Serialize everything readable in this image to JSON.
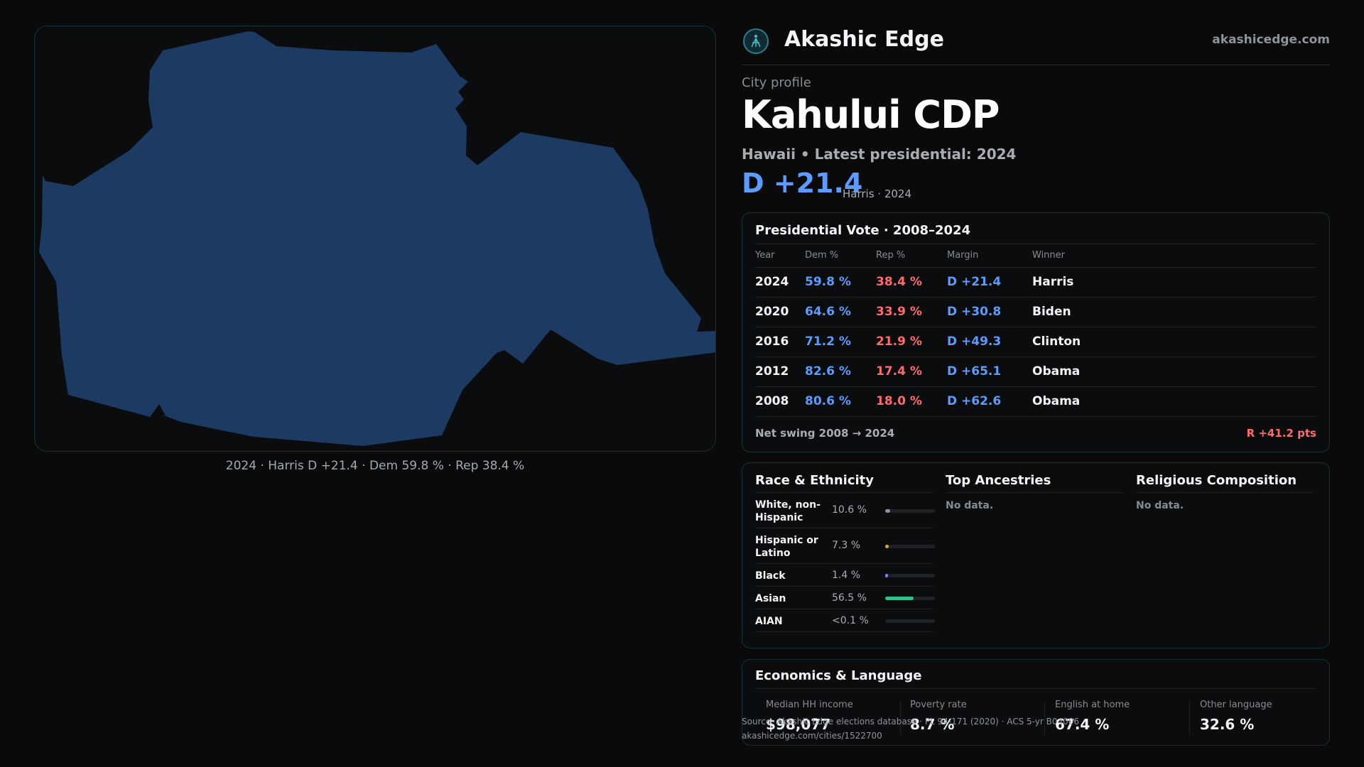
{
  "map": {
    "caption": "2024 · Harris D +21.4 · Dem 59.8 % · Rep 38.4 %",
    "fill_color": "#1d3a63"
  },
  "brand": {
    "name": "Akashic Edge",
    "url": "akashicedge.com",
    "icon": "akashic-edge-logo-icon"
  },
  "profile": {
    "eyebrow": "City profile",
    "title": "Kahului CDP",
    "subtitle": "Hawaii • Latest presidential: 2024",
    "margin": "D +21.4",
    "margin_note": "Harris · 2024"
  },
  "vote": {
    "title": "Presidential Vote · 2008–2024",
    "headers": [
      "Year",
      "Dem %",
      "Rep %",
      "Margin",
      "Winner"
    ],
    "rows": [
      {
        "year": "2024",
        "dem": "59.8 %",
        "rep": "38.4 %",
        "margin": "D +21.4",
        "winner": "Harris"
      },
      {
        "year": "2020",
        "dem": "64.6 %",
        "rep": "33.9 %",
        "margin": "D +30.8",
        "winner": "Biden"
      },
      {
        "year": "2016",
        "dem": "71.2 %",
        "rep": "21.9 %",
        "margin": "D +49.3",
        "winner": "Clinton"
      },
      {
        "year": "2012",
        "dem": "82.6 %",
        "rep": "17.4 %",
        "margin": "D +65.1",
        "winner": "Obama"
      },
      {
        "year": "2008",
        "dem": "80.6 %",
        "rep": "18.0 %",
        "margin": "D +62.6",
        "winner": "Obama"
      }
    ],
    "swing_label": "Net swing 2008 → 2024",
    "swing_value": "R +41.2 pts"
  },
  "demographics": {
    "race_title": "Race & Ethnicity",
    "race": [
      {
        "name": "White, non-Hispanic",
        "pct": "10.6 %",
        "share": 0.106,
        "color": "#8a94a6"
      },
      {
        "name": "Hispanic or Latino",
        "pct": "7.3 %",
        "share": 0.073,
        "color": "#e0a030"
      },
      {
        "name": "Black",
        "pct": "1.4 %",
        "share": 0.014,
        "color": "#8a7cff"
      },
      {
        "name": "Asian",
        "pct": "56.5 %",
        "share": 0.565,
        "color": "#2fbf8a"
      },
      {
        "name": "AIAN",
        "pct": "<0.1 %",
        "share": 0.0,
        "color": "#c07040"
      }
    ],
    "ancestry_title": "Top Ancestries",
    "ancestry_nodata": "No data.",
    "religion_title": "Religious Composition",
    "religion_nodata": "No data."
  },
  "economics": {
    "title": "Economics & Language",
    "stats": [
      {
        "label": "Median HH income",
        "value": "$98,077"
      },
      {
        "label": "Poverty rate",
        "value": "8.7 %"
      },
      {
        "label": "English at home",
        "value": "67.4 %"
      },
      {
        "label": "Other language",
        "value": "32.6 %"
      }
    ]
  },
  "footer": {
    "source": "Source: Akashic Edge elections database · PL 94-171 (2020) · ACS 5-yr B04006",
    "link": "akashicedge.com/cities/1522700"
  }
}
